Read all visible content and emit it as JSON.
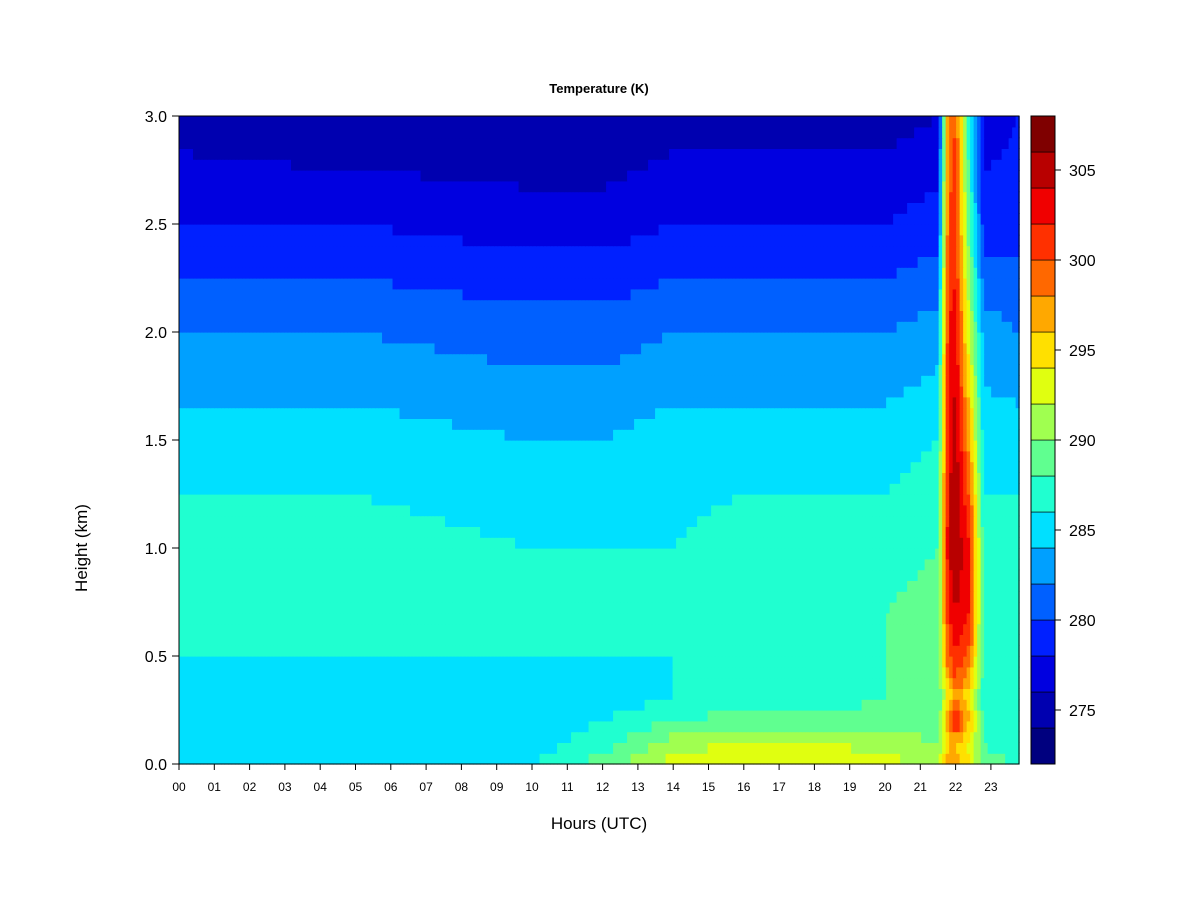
{
  "chart_data": {
    "type": "heatmap",
    "title": "Temperature (K)",
    "xlabel": "Hours (UTC)",
    "ylabel": "Height (km)",
    "xlim": [
      0,
      24
    ],
    "ylim": [
      0.0,
      3.0
    ],
    "x_ticks": [
      "00",
      "01",
      "02",
      "03",
      "04",
      "05",
      "06",
      "07",
      "08",
      "09",
      "10",
      "11",
      "12",
      "13",
      "14",
      "15",
      "16",
      "17",
      "18",
      "19",
      "20",
      "21",
      "22",
      "23"
    ],
    "y_ticks": [
      "0.0",
      "0.5",
      "1.0",
      "1.5",
      "2.0",
      "2.5",
      "3.0"
    ],
    "colorbar": {
      "min": 272,
      "max": 308,
      "step": 2,
      "ticks": [
        "275",
        "280",
        "285",
        "290",
        "295",
        "300",
        "305"
      ],
      "colors": [
        "#00007f",
        "#0000b0",
        "#0000e0",
        "#0020ff",
        "#0060ff",
        "#00a0ff",
        "#00e0ff",
        "#20ffd0",
        "#60ff90",
        "#a0ff50",
        "#e0ff10",
        "#ffe000",
        "#ffa800",
        "#ff6800",
        "#ff3000",
        "#f00000",
        "#b80000",
        "#7f0000"
      ]
    },
    "profile_heights_km": [
      0.0,
      0.1,
      0.2,
      0.3,
      0.5,
      0.7,
      1.0,
      1.5,
      2.0,
      2.5,
      3.0
    ],
    "profiles": [
      {
        "hour": 0,
        "temp_k": [
          286,
          285,
          285,
          285,
          286,
          287,
          287,
          285,
          282,
          278,
          275
        ]
      },
      {
        "hour": 5,
        "temp_k": [
          285,
          285,
          284,
          285,
          286,
          287,
          287,
          285,
          282,
          278,
          274
        ]
      },
      {
        "hour": 10,
        "temp_k": [
          286,
          285,
          285,
          285,
          286,
          287,
          286,
          284,
          281,
          277,
          274
        ]
      },
      {
        "hour": 12,
        "temp_k": [
          289,
          287,
          286,
          285,
          286,
          287,
          286,
          284,
          281,
          277,
          274
        ]
      },
      {
        "hour": 14,
        "temp_k": [
          293,
          291,
          288,
          286,
          286,
          287,
          286,
          285,
          282,
          278,
          275
        ]
      },
      {
        "hour": 16,
        "temp_k": [
          294,
          292,
          289,
          287,
          287,
          287,
          287,
          285,
          282,
          278,
          275
        ]
      },
      {
        "hour": 18,
        "temp_k": [
          294,
          292,
          289,
          287,
          287,
          287,
          287,
          285,
          282,
          278,
          275
        ]
      },
      {
        "hour": 20,
        "temp_k": [
          293,
          291,
          289,
          288,
          288,
          288,
          287,
          285,
          282,
          278,
          275
        ]
      },
      {
        "hour": 21.5,
        "temp_k": [
          291,
          290,
          289,
          288,
          289,
          289,
          288,
          286,
          283,
          279,
          276
        ]
      },
      {
        "hour": 21.8,
        "temp_k": [
          298,
          296,
          298,
          294,
          300,
          302,
          304,
          303,
          302,
          300,
          299
        ]
      },
      {
        "hour": 22.0,
        "temp_k": [
          298,
          296,
          304,
          298,
          302,
          304,
          306,
          305,
          303,
          301,
          300
        ]
      },
      {
        "hour": 22.4,
        "temp_k": [
          294,
          293,
          296,
          294,
          299,
          302,
          302,
          297,
          292,
          288,
          286
        ]
      },
      {
        "hour": 22.8,
        "temp_k": [
          289,
          288,
          288,
          287,
          287,
          287,
          287,
          285,
          283,
          279,
          277
        ]
      },
      {
        "hour": 23.8,
        "temp_k": [
          288,
          286,
          286,
          286,
          287,
          287,
          287,
          285,
          282,
          279,
          278
        ]
      }
    ]
  }
}
